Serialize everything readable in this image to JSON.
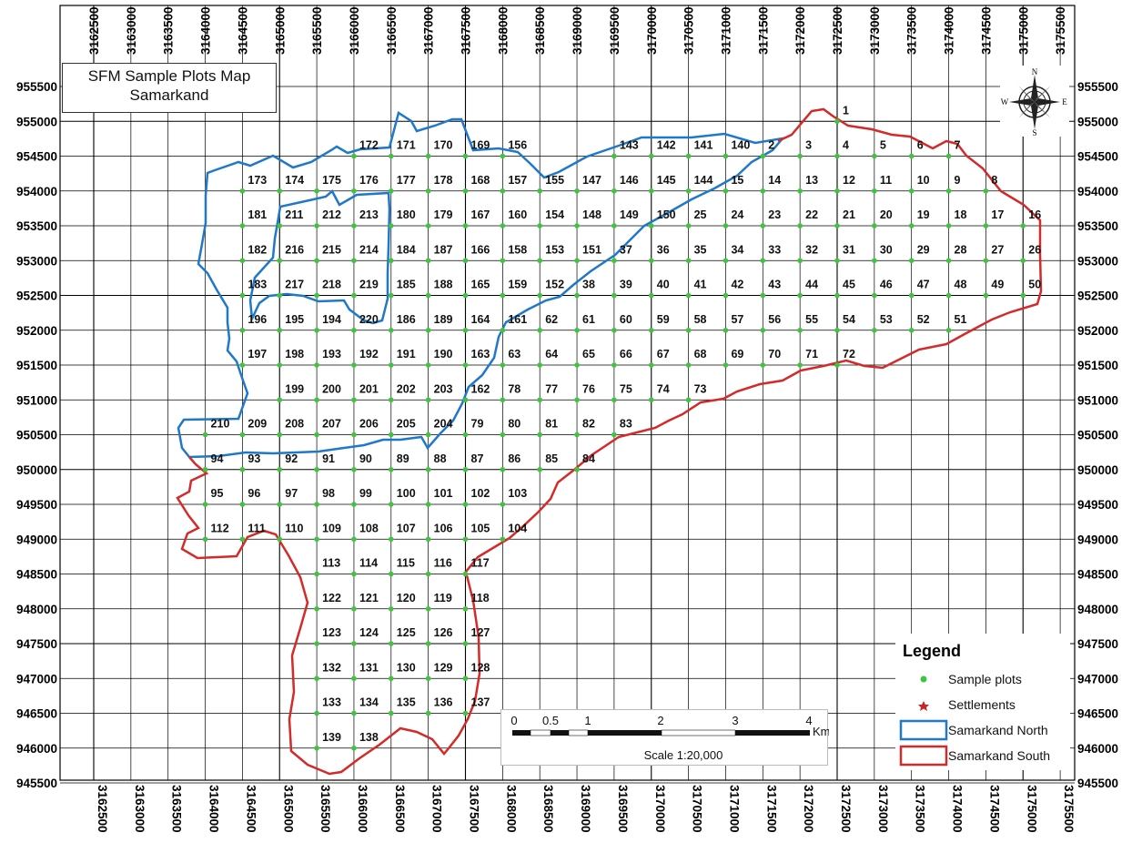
{
  "title": {
    "line1": "SFM Sample Plots Map",
    "line2": "Samarkand"
  },
  "north_arrow": {
    "n": "N",
    "s": "S",
    "e": "E",
    "w": "W"
  },
  "legend": {
    "title": "Legend",
    "items": [
      {
        "label": "Sample plots",
        "color": "#3ec43e"
      },
      {
        "label": "Settlements",
        "color": "#c62828"
      },
      {
        "label": "Samarkand North",
        "color": "#1f78c8"
      },
      {
        "label": "Samarkand South",
        "color": "#d42a2a"
      }
    ]
  },
  "scale": {
    "ticks": [
      "0",
      "0.5",
      "1",
      "2",
      "3",
      "4"
    ],
    "unit": "Km",
    "text": "Scale 1:20,000"
  },
  "x_ticks": [
    3162500,
    3163000,
    3163500,
    3164000,
    3164500,
    3165000,
    3165500,
    3166000,
    3166500,
    3167000,
    3167500,
    3168000,
    3168500,
    3169000,
    3169500,
    3170000,
    3170500,
    3171000,
    3171500,
    3172000,
    3172500,
    3173000,
    3173500,
    3174000,
    3174500,
    3175000,
    3175500
  ],
  "y_ticks": [
    955500,
    955000,
    954500,
    954000,
    953500,
    953000,
    952500,
    952000,
    951500,
    951000,
    950500,
    950000,
    949500,
    949000,
    948500,
    948000,
    947500,
    947000,
    946500,
    946000,
    945500
  ],
  "plots": [
    {
      "n": "1",
      "x": 3172500,
      "y": 955000
    },
    {
      "n": "2",
      "x": 3171500,
      "y": 954500
    },
    {
      "n": "3",
      "x": 3172000,
      "y": 954500
    },
    {
      "n": "4",
      "x": 3172500,
      "y": 954500
    },
    {
      "n": "5",
      "x": 3173000,
      "y": 954500
    },
    {
      "n": "6",
      "x": 3173500,
      "y": 954500
    },
    {
      "n": "7",
      "x": 3174000,
      "y": 954500
    },
    {
      "n": "140",
      "x": 3171000,
      "y": 954500
    },
    {
      "n": "141",
      "x": 3170500,
      "y": 954500
    },
    {
      "n": "142",
      "x": 3170000,
      "y": 954500
    },
    {
      "n": "143",
      "x": 3169500,
      "y": 954500
    },
    {
      "n": "156",
      "x": 3168000,
      "y": 954500
    },
    {
      "n": "169",
      "x": 3167500,
      "y": 954500
    },
    {
      "n": "170",
      "x": 3167000,
      "y": 954500
    },
    {
      "n": "171",
      "x": 3166500,
      "y": 954500
    },
    {
      "n": "172",
      "x": 3166000,
      "y": 954500
    },
    {
      "n": "173",
      "x": 3164500,
      "y": 954000
    },
    {
      "n": "174",
      "x": 3165000,
      "y": 954000
    },
    {
      "n": "175",
      "x": 3165500,
      "y": 954000
    },
    {
      "n": "176",
      "x": 3166000,
      "y": 954000
    },
    {
      "n": "177",
      "x": 3166500,
      "y": 954000
    },
    {
      "n": "178",
      "x": 3167000,
      "y": 954000
    },
    {
      "n": "168",
      "x": 3167500,
      "y": 954000
    },
    {
      "n": "157",
      "x": 3168000,
      "y": 954000
    },
    {
      "n": "155",
      "x": 3168500,
      "y": 954000
    },
    {
      "n": "147",
      "x": 3169000,
      "y": 954000
    },
    {
      "n": "146",
      "x": 3169500,
      "y": 954000
    },
    {
      "n": "145",
      "x": 3170000,
      "y": 954000
    },
    {
      "n": "144",
      "x": 3170500,
      "y": 954000
    },
    {
      "n": "15",
      "x": 3171000,
      "y": 954000
    },
    {
      "n": "14",
      "x": 3171500,
      "y": 954000
    },
    {
      "n": "13",
      "x": 3172000,
      "y": 954000
    },
    {
      "n": "12",
      "x": 3172500,
      "y": 954000
    },
    {
      "n": "11",
      "x": 3173000,
      "y": 954000
    },
    {
      "n": "10",
      "x": 3173500,
      "y": 954000
    },
    {
      "n": "9",
      "x": 3174000,
      "y": 954000
    },
    {
      "n": "8",
      "x": 3174500,
      "y": 954000
    },
    {
      "n": "181",
      "x": 3164500,
      "y": 953500
    },
    {
      "n": "211",
      "x": 3165000,
      "y": 953500
    },
    {
      "n": "212",
      "x": 3165500,
      "y": 953500
    },
    {
      "n": "213",
      "x": 3166000,
      "y": 953500
    },
    {
      "n": "180",
      "x": 3166500,
      "y": 953500
    },
    {
      "n": "179",
      "x": 3167000,
      "y": 953500
    },
    {
      "n": "167",
      "x": 3167500,
      "y": 953500
    },
    {
      "n": "160",
      "x": 3168000,
      "y": 953500
    },
    {
      "n": "154",
      "x": 3168500,
      "y": 953500
    },
    {
      "n": "148",
      "x": 3169000,
      "y": 953500
    },
    {
      "n": "149",
      "x": 3169500,
      "y": 953500
    },
    {
      "n": "150",
      "x": 3170000,
      "y": 953500
    },
    {
      "n": "25",
      "x": 3170500,
      "y": 953500
    },
    {
      "n": "24",
      "x": 3171000,
      "y": 953500
    },
    {
      "n": "23",
      "x": 3171500,
      "y": 953500
    },
    {
      "n": "22",
      "x": 3172000,
      "y": 953500
    },
    {
      "n": "21",
      "x": 3172500,
      "y": 953500
    },
    {
      "n": "20",
      "x": 3173000,
      "y": 953500
    },
    {
      "n": "19",
      "x": 3173500,
      "y": 953500
    },
    {
      "n": "18",
      "x": 3174000,
      "y": 953500
    },
    {
      "n": "17",
      "x": 3174500,
      "y": 953500
    },
    {
      "n": "16",
      "x": 3175000,
      "y": 953500
    },
    {
      "n": "182",
      "x": 3164500,
      "y": 953000
    },
    {
      "n": "216",
      "x": 3165000,
      "y": 953000
    },
    {
      "n": "215",
      "x": 3165500,
      "y": 953000
    },
    {
      "n": "214",
      "x": 3166000,
      "y": 953000
    },
    {
      "n": "184",
      "x": 3166500,
      "y": 953000
    },
    {
      "n": "187",
      "x": 3167000,
      "y": 953000
    },
    {
      "n": "166",
      "x": 3167500,
      "y": 953000
    },
    {
      "n": "158",
      "x": 3168000,
      "y": 953000
    },
    {
      "n": "153",
      "x": 3168500,
      "y": 953000
    },
    {
      "n": "151",
      "x": 3169000,
      "y": 953000
    },
    {
      "n": "37",
      "x": 3169500,
      "y": 953000
    },
    {
      "n": "36",
      "x": 3170000,
      "y": 953000
    },
    {
      "n": "35",
      "x": 3170500,
      "y": 953000
    },
    {
      "n": "34",
      "x": 3171000,
      "y": 953000
    },
    {
      "n": "33",
      "x": 3171500,
      "y": 953000
    },
    {
      "n": "32",
      "x": 3172000,
      "y": 953000
    },
    {
      "n": "31",
      "x": 3172500,
      "y": 953000
    },
    {
      "n": "30",
      "x": 3173000,
      "y": 953000
    },
    {
      "n": "29",
      "x": 3173500,
      "y": 953000
    },
    {
      "n": "28",
      "x": 3174000,
      "y": 953000
    },
    {
      "n": "27",
      "x": 3174500,
      "y": 953000
    },
    {
      "n": "26",
      "x": 3175000,
      "y": 953000
    },
    {
      "n": "183",
      "x": 3164500,
      "y": 952500
    },
    {
      "n": "217",
      "x": 3165000,
      "y": 952500
    },
    {
      "n": "218",
      "x": 3165500,
      "y": 952500
    },
    {
      "n": "219",
      "x": 3166000,
      "y": 952500
    },
    {
      "n": "185",
      "x": 3166500,
      "y": 952500
    },
    {
      "n": "188",
      "x": 3167000,
      "y": 952500
    },
    {
      "n": "165",
      "x": 3167500,
      "y": 952500
    },
    {
      "n": "159",
      "x": 3168000,
      "y": 952500
    },
    {
      "n": "152",
      "x": 3168500,
      "y": 952500
    },
    {
      "n": "38",
      "x": 3169000,
      "y": 952500
    },
    {
      "n": "39",
      "x": 3169500,
      "y": 952500
    },
    {
      "n": "40",
      "x": 3170000,
      "y": 952500
    },
    {
      "n": "41",
      "x": 3170500,
      "y": 952500
    },
    {
      "n": "42",
      "x": 3171000,
      "y": 952500
    },
    {
      "n": "43",
      "x": 3171500,
      "y": 952500
    },
    {
      "n": "44",
      "x": 3172000,
      "y": 952500
    },
    {
      "n": "45",
      "x": 3172500,
      "y": 952500
    },
    {
      "n": "46",
      "x": 3173000,
      "y": 952500
    },
    {
      "n": "47",
      "x": 3173500,
      "y": 952500
    },
    {
      "n": "48",
      "x": 3174000,
      "y": 952500
    },
    {
      "n": "49",
      "x": 3174500,
      "y": 952500
    },
    {
      "n": "50",
      "x": 3175000,
      "y": 952500
    },
    {
      "n": "196",
      "x": 3164500,
      "y": 952000
    },
    {
      "n": "195",
      "x": 3165000,
      "y": 952000
    },
    {
      "n": "194",
      "x": 3165500,
      "y": 952000
    },
    {
      "n": "220",
      "x": 3166000,
      "y": 952000
    },
    {
      "n": "186",
      "x": 3166500,
      "y": 952000
    },
    {
      "n": "189",
      "x": 3167000,
      "y": 952000
    },
    {
      "n": "164",
      "x": 3167500,
      "y": 952000
    },
    {
      "n": "161",
      "x": 3168000,
      "y": 952000
    },
    {
      "n": "62",
      "x": 3168500,
      "y": 952000
    },
    {
      "n": "61",
      "x": 3169000,
      "y": 952000
    },
    {
      "n": "60",
      "x": 3169500,
      "y": 952000
    },
    {
      "n": "59",
      "x": 3170000,
      "y": 952000
    },
    {
      "n": "58",
      "x": 3170500,
      "y": 952000
    },
    {
      "n": "57",
      "x": 3171000,
      "y": 952000
    },
    {
      "n": "56",
      "x": 3171500,
      "y": 952000
    },
    {
      "n": "55",
      "x": 3172000,
      "y": 952000
    },
    {
      "n": "54",
      "x": 3172500,
      "y": 952000
    },
    {
      "n": "53",
      "x": 3173000,
      "y": 952000
    },
    {
      "n": "52",
      "x": 3173500,
      "y": 952000
    },
    {
      "n": "51",
      "x": 3174000,
      "y": 952000
    },
    {
      "n": "197",
      "x": 3164500,
      "y": 951500
    },
    {
      "n": "198",
      "x": 3165000,
      "y": 951500
    },
    {
      "n": "193",
      "x": 3165500,
      "y": 951500
    },
    {
      "n": "192",
      "x": 3166000,
      "y": 951500
    },
    {
      "n": "191",
      "x": 3166500,
      "y": 951500
    },
    {
      "n": "190",
      "x": 3167000,
      "y": 951500
    },
    {
      "n": "163",
      "x": 3167500,
      "y": 951500
    },
    {
      "n": "63",
      "x": 3168000,
      "y": 951500
    },
    {
      "n": "64",
      "x": 3168500,
      "y": 951500
    },
    {
      "n": "65",
      "x": 3169000,
      "y": 951500
    },
    {
      "n": "66",
      "x": 3169500,
      "y": 951500
    },
    {
      "n": "67",
      "x": 3170000,
      "y": 951500
    },
    {
      "n": "68",
      "x": 3170500,
      "y": 951500
    },
    {
      "n": "69",
      "x": 3171000,
      "y": 951500
    },
    {
      "n": "70",
      "x": 3171500,
      "y": 951500
    },
    {
      "n": "71",
      "x": 3172000,
      "y": 951500
    },
    {
      "n": "72",
      "x": 3172500,
      "y": 951500
    },
    {
      "n": "199",
      "x": 3165000,
      "y": 951000
    },
    {
      "n": "200",
      "x": 3165500,
      "y": 951000
    },
    {
      "n": "201",
      "x": 3166000,
      "y": 951000
    },
    {
      "n": "202",
      "x": 3166500,
      "y": 951000
    },
    {
      "n": "203",
      "x": 3167000,
      "y": 951000
    },
    {
      "n": "162",
      "x": 3167500,
      "y": 951000
    },
    {
      "n": "78",
      "x": 3168000,
      "y": 951000
    },
    {
      "n": "77",
      "x": 3168500,
      "y": 951000
    },
    {
      "n": "76",
      "x": 3169000,
      "y": 951000
    },
    {
      "n": "75",
      "x": 3169500,
      "y": 951000
    },
    {
      "n": "74",
      "x": 3170000,
      "y": 951000
    },
    {
      "n": "73",
      "x": 3170500,
      "y": 951000
    },
    {
      "n": "210",
      "x": 3164000,
      "y": 950500
    },
    {
      "n": "209",
      "x": 3164500,
      "y": 950500
    },
    {
      "n": "208",
      "x": 3165000,
      "y": 950500
    },
    {
      "n": "207",
      "x": 3165500,
      "y": 950500
    },
    {
      "n": "206",
      "x": 3166000,
      "y": 950500
    },
    {
      "n": "205",
      "x": 3166500,
      "y": 950500
    },
    {
      "n": "204",
      "x": 3167000,
      "y": 950500
    },
    {
      "n": "79",
      "x": 3167500,
      "y": 950500
    },
    {
      "n": "80",
      "x": 3168000,
      "y": 950500
    },
    {
      "n": "81",
      "x": 3168500,
      "y": 950500
    },
    {
      "n": "82",
      "x": 3169000,
      "y": 950500
    },
    {
      "n": "83",
      "x": 3169500,
      "y": 950500
    },
    {
      "n": "94",
      "x": 3164000,
      "y": 950000
    },
    {
      "n": "93",
      "x": 3164500,
      "y": 950000
    },
    {
      "n": "92",
      "x": 3165000,
      "y": 950000
    },
    {
      "n": "91",
      "x": 3165500,
      "y": 950000
    },
    {
      "n": "90",
      "x": 3166000,
      "y": 950000
    },
    {
      "n": "89",
      "x": 3166500,
      "y": 950000
    },
    {
      "n": "88",
      "x": 3167000,
      "y": 950000
    },
    {
      "n": "87",
      "x": 3167500,
      "y": 950000
    },
    {
      "n": "86",
      "x": 3168000,
      "y": 950000
    },
    {
      "n": "85",
      "x": 3168500,
      "y": 950000
    },
    {
      "n": "84",
      "x": 3169000,
      "y": 950000
    },
    {
      "n": "95",
      "x": 3164000,
      "y": 949500
    },
    {
      "n": "96",
      "x": 3164500,
      "y": 949500
    },
    {
      "n": "97",
      "x": 3165000,
      "y": 949500
    },
    {
      "n": "98",
      "x": 3165500,
      "y": 949500
    },
    {
      "n": "99",
      "x": 3166000,
      "y": 949500
    },
    {
      "n": "100",
      "x": 3166500,
      "y": 949500
    },
    {
      "n": "101",
      "x": 3167000,
      "y": 949500
    },
    {
      "n": "102",
      "x": 3167500,
      "y": 949500
    },
    {
      "n": "103",
      "x": 3168000,
      "y": 949500
    },
    {
      "n": "112",
      "x": 3164000,
      "y": 949000
    },
    {
      "n": "111",
      "x": 3164500,
      "y": 949000
    },
    {
      "n": "110",
      "x": 3165000,
      "y": 949000
    },
    {
      "n": "109",
      "x": 3165500,
      "y": 949000
    },
    {
      "n": "108",
      "x": 3166000,
      "y": 949000
    },
    {
      "n": "107",
      "x": 3166500,
      "y": 949000
    },
    {
      "n": "106",
      "x": 3167000,
      "y": 949000
    },
    {
      "n": "105",
      "x": 3167500,
      "y": 949000
    },
    {
      "n": "104",
      "x": 3168000,
      "y": 949000
    },
    {
      "n": "113",
      "x": 3165500,
      "y": 948500
    },
    {
      "n": "114",
      "x": 3166000,
      "y": 948500
    },
    {
      "n": "115",
      "x": 3166500,
      "y": 948500
    },
    {
      "n": "116",
      "x": 3167000,
      "y": 948500
    },
    {
      "n": "117",
      "x": 3167500,
      "y": 948500
    },
    {
      "n": "122",
      "x": 3165500,
      "y": 948000
    },
    {
      "n": "121",
      "x": 3166000,
      "y": 948000
    },
    {
      "n": "120",
      "x": 3166500,
      "y": 948000
    },
    {
      "n": "119",
      "x": 3167000,
      "y": 948000
    },
    {
      "n": "118",
      "x": 3167500,
      "y": 948000
    },
    {
      "n": "123",
      "x": 3165500,
      "y": 947500
    },
    {
      "n": "124",
      "x": 3166000,
      "y": 947500
    },
    {
      "n": "125",
      "x": 3166500,
      "y": 947500
    },
    {
      "n": "126",
      "x": 3167000,
      "y": 947500
    },
    {
      "n": "127",
      "x": 3167500,
      "y": 947500
    },
    {
      "n": "132",
      "x": 3165500,
      "y": 947000
    },
    {
      "n": "131",
      "x": 3166000,
      "y": 947000
    },
    {
      "n": "130",
      "x": 3166500,
      "y": 947000
    },
    {
      "n": "129",
      "x": 3167000,
      "y": 947000
    },
    {
      "n": "128",
      "x": 3167500,
      "y": 947000
    },
    {
      "n": "133",
      "x": 3165500,
      "y": 946500
    },
    {
      "n": "134",
      "x": 3166000,
      "y": 946500
    },
    {
      "n": "135",
      "x": 3166500,
      "y": 946500
    },
    {
      "n": "136",
      "x": 3167000,
      "y": 946500
    },
    {
      "n": "137",
      "x": 3167500,
      "y": 946500
    },
    {
      "n": "139",
      "x": 3165500,
      "y": 946000
    },
    {
      "n": "138",
      "x": 3166000,
      "y": 946000
    }
  ]
}
